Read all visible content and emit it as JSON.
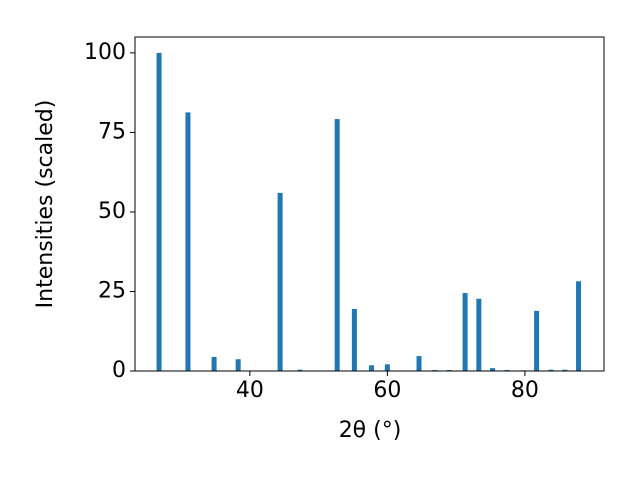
{
  "chart_data": {
    "type": "bar",
    "x_label": "2θ (°)",
    "y_label": "Intensities (scaled)",
    "x": [
      26.8,
      31.0,
      34.8,
      38.3,
      44.4,
      47.3,
      52.7,
      55.2,
      57.7,
      60.0,
      64.6,
      66.9,
      69.0,
      71.3,
      73.3,
      75.3,
      77.4,
      79.7,
      81.7,
      83.8,
      85.8,
      87.8
    ],
    "values": [
      100,
      81.3,
      4.4,
      3.7,
      56,
      0.4,
      79.2,
      19.5,
      1.8,
      2.1,
      4.7,
      0.3,
      0.3,
      24.5,
      22.7,
      0.9,
      0.3,
      0.2,
      18.9,
      0.4,
      0.4,
      28.2
    ],
    "color": "#1f77b4",
    "xlim": [
      23.3,
      91.5
    ],
    "xticks": [
      40,
      60,
      80
    ],
    "ylim": [
      0,
      105
    ],
    "yticks": [
      0,
      25,
      50,
      75,
      100
    ]
  }
}
